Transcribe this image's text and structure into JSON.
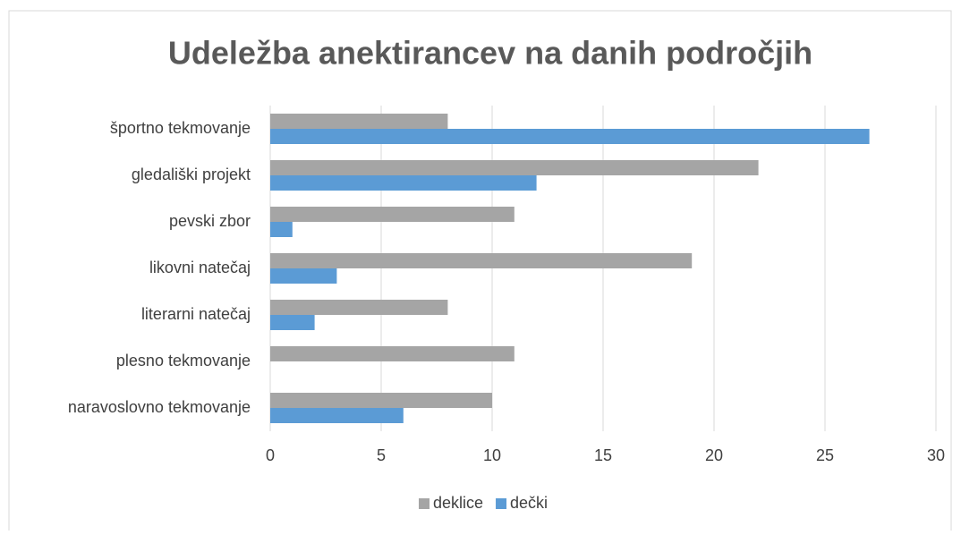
{
  "chart_data": {
    "type": "hbar",
    "title": "Udeležba anektirancev na danih področjih",
    "categories": [
      "športno tekmovanje",
      "gledališki projekt",
      "pevski zbor",
      "likovni natečaj",
      "literarni natečaj",
      "plesno tekmovanje",
      "naravoslovno tekmovanje"
    ],
    "series": [
      {
        "name": "deklice",
        "color": "#a5a5a5",
        "values": [
          8,
          22,
          11,
          19,
          8,
          11,
          10
        ]
      },
      {
        "name": "dečki",
        "color": "#5b9bd5",
        "values": [
          27,
          12,
          1,
          3,
          2,
          0,
          6
        ]
      }
    ],
    "xlim": [
      0,
      30
    ],
    "xticks": [
      0,
      5,
      10,
      15,
      20,
      25,
      30
    ],
    "grid": true,
    "legend": "bottom"
  }
}
